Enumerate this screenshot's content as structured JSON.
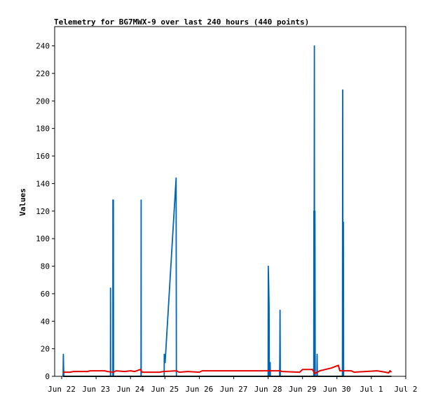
{
  "chart_data": {
    "type": "line",
    "title": "Telemetry for BG7MWX-9 over last 240 hours (440 points)",
    "ylabel": "Values",
    "xlabel": "",
    "ylim": [
      0,
      254
    ],
    "y_ticks": [
      0,
      20,
      40,
      60,
      80,
      100,
      120,
      140,
      160,
      180,
      200,
      220,
      240
    ],
    "x_range": [
      "2025-06-22",
      "2025-07-02"
    ],
    "x_ticks": [
      {
        "date": "2025-06-22",
        "label": "Jun 22"
      },
      {
        "date": "2025-06-23",
        "label": "Jun 23"
      },
      {
        "date": "2025-06-24",
        "label": "Jun 24"
      },
      {
        "date": "2025-06-25",
        "label": "Jun 25"
      },
      {
        "date": "2025-06-26",
        "label": "Jun 26"
      },
      {
        "date": "2025-06-27",
        "label": "Jun 27"
      },
      {
        "date": "2025-06-28",
        "label": "Jun 28"
      },
      {
        "date": "2025-06-29",
        "label": "Jun 29"
      },
      {
        "date": "2025-06-30",
        "label": "Jun 30"
      },
      {
        "date": "2025-07-01",
        "label": "Jul 1"
      },
      {
        "date": "2025-07-02",
        "label": "Jul 2"
      }
    ],
    "grid": false,
    "series": [
      {
        "color": "#0066b3",
        "points": [
          [
            "2025-06-22T01:00",
            0
          ],
          [
            "2025-06-22T01:10",
            16
          ],
          [
            "2025-06-22T01:20",
            8
          ],
          [
            "2025-06-22T01:30",
            0
          ],
          [
            "2025-06-23T10:00",
            0
          ],
          [
            "2025-06-23T10:05",
            64
          ],
          [
            "2025-06-23T10:10",
            0
          ],
          [
            "2025-06-23T11:40",
            0
          ],
          [
            "2025-06-23T11:45",
            128
          ],
          [
            "2025-06-23T11:50",
            0
          ],
          [
            "2025-06-23T12:00",
            0
          ],
          [
            "2025-06-23T12:05",
            128
          ],
          [
            "2025-06-23T12:10",
            0
          ],
          [
            "2025-06-24T07:20",
            0
          ],
          [
            "2025-06-24T07:25",
            128
          ],
          [
            "2025-06-24T07:30",
            0
          ],
          [
            "2025-06-24T23:30",
            0
          ],
          [
            "2025-06-24T23:35",
            16
          ],
          [
            "2025-06-25T00:10",
            10
          ],
          [
            "2025-06-25T07:50",
            144
          ],
          [
            "2025-06-25T08:00",
            0
          ],
          [
            "2025-06-28T00:00",
            0
          ],
          [
            "2025-06-28T00:05",
            80
          ],
          [
            "2025-06-28T00:20",
            70
          ],
          [
            "2025-06-28T00:40",
            50
          ],
          [
            "2025-06-28T00:50",
            0
          ],
          [
            "2025-06-28T01:25",
            10
          ],
          [
            "2025-06-28T01:35",
            0
          ],
          [
            "2025-06-28T08:00",
            0
          ],
          [
            "2025-06-28T08:10",
            16
          ],
          [
            "2025-06-28T08:20",
            48
          ],
          [
            "2025-06-28T08:30",
            0
          ],
          [
            "2025-06-29T07:50",
            0
          ],
          [
            "2025-06-29T07:55",
            120
          ],
          [
            "2025-06-29T08:00",
            0
          ],
          [
            "2025-06-29T08:15",
            240
          ],
          [
            "2025-06-29T08:25",
            0
          ],
          [
            "2025-06-29T08:40",
            120
          ],
          [
            "2025-06-29T08:50",
            0
          ],
          [
            "2025-06-29T10:00",
            0
          ],
          [
            "2025-06-29T10:10",
            16
          ],
          [
            "2025-06-29T10:20",
            0
          ],
          [
            "2025-06-30T03:50",
            0
          ],
          [
            "2025-06-30T04:00",
            208
          ],
          [
            "2025-06-30T04:15",
            0
          ],
          [
            "2025-06-30T04:30",
            112
          ],
          [
            "2025-06-30T04:40",
            0
          ]
        ]
      },
      {
        "color": "#e60000",
        "points": [
          [
            "2025-06-22T01:00",
            3
          ],
          [
            "2025-06-22T06:00",
            3
          ],
          [
            "2025-06-22T08:00",
            3.5
          ],
          [
            "2025-06-22T18:00",
            3.5
          ],
          [
            "2025-06-22T20:00",
            4
          ],
          [
            "2025-06-23T06:00",
            4
          ],
          [
            "2025-06-23T08:00",
            3.5
          ],
          [
            "2025-06-23T12:00",
            3
          ],
          [
            "2025-06-23T14:00",
            4
          ],
          [
            "2025-06-23T20:00",
            3.5
          ],
          [
            "2025-06-24T00:00",
            4
          ],
          [
            "2025-06-24T03:00",
            3.5
          ],
          [
            "2025-06-24T07:00",
            5
          ],
          [
            "2025-06-24T08:00",
            3
          ],
          [
            "2025-06-24T20:00",
            3
          ],
          [
            "2025-06-24T23:00",
            3.5
          ],
          [
            "2025-06-25T08:00",
            4
          ],
          [
            "2025-06-25T10:00",
            3
          ],
          [
            "2025-06-25T16:00",
            3.5
          ],
          [
            "2025-06-26T00:00",
            3
          ],
          [
            "2025-06-26T02:00",
            4
          ],
          [
            "2025-06-27T00:00",
            4
          ],
          [
            "2025-06-28T00:00",
            4
          ],
          [
            "2025-06-28T08:00",
            4
          ],
          [
            "2025-06-28T10:00",
            3.5
          ],
          [
            "2025-06-28T22:00",
            3
          ],
          [
            "2025-06-29T00:00",
            5
          ],
          [
            "2025-06-29T07:00",
            5
          ],
          [
            "2025-06-29T08:30",
            2
          ],
          [
            "2025-06-29T12:00",
            4
          ],
          [
            "2025-06-29T20:00",
            6
          ],
          [
            "2025-06-30T01:00",
            8
          ],
          [
            "2025-06-30T02:00",
            4
          ],
          [
            "2025-06-30T10:00",
            4
          ],
          [
            "2025-06-30T12:00",
            3
          ],
          [
            "2025-06-30T20:00",
            3.5
          ],
          [
            "2025-07-01T04:00",
            4
          ],
          [
            "2025-07-01T10:00",
            3
          ],
          [
            "2025-07-01T12:00",
            2.5
          ],
          [
            "2025-07-01T13:00",
            4
          ],
          [
            "2025-07-01T14:00",
            3
          ]
        ]
      },
      {
        "color": "#000000",
        "points": [
          [
            "2025-06-22T01:00",
            0
          ],
          [
            "2025-07-01T14:00",
            0
          ]
        ]
      }
    ]
  }
}
